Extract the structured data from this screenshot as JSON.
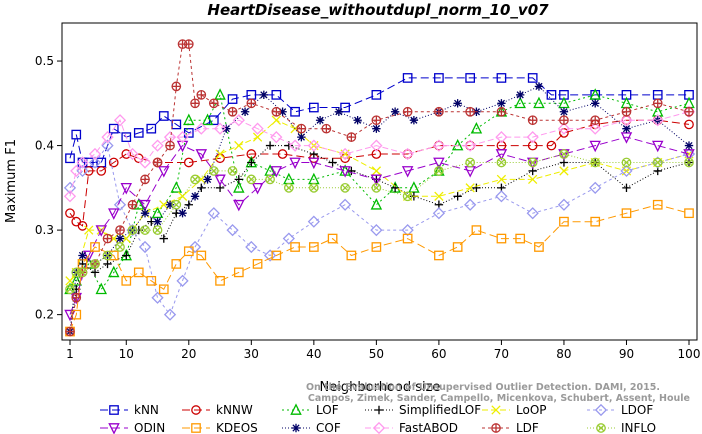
{
  "chart_data": {
    "type": "line",
    "title": "HeartDisease_withoutdupl_norm_10_v07",
    "xlabel": "Neighborhood size",
    "ylabel": "Maximum F1",
    "xlim": [
      1,
      100
    ],
    "ylim": [
      0.17,
      0.545
    ],
    "xticks": [
      1,
      10,
      20,
      30,
      40,
      50,
      60,
      70,
      80,
      90,
      100
    ],
    "yticks": [
      0.2,
      0.3,
      0.4,
      0.5
    ],
    "legend_position": "bottom",
    "credit": "Campos, Zimek, Sander, Campello, Micenkova, Schubert, Assent, Houle\nOn the Evaluation of Unsupervised Outlier Detection. DAMI, 2015.",
    "series": [
      {
        "name": "kNN",
        "color": "#0000cc",
        "marker": "square",
        "dash": "8,4",
        "x": [
          1,
          2,
          3,
          4,
          6,
          8,
          10,
          12,
          14,
          16,
          18,
          20,
          24,
          27,
          30,
          34,
          37,
          40,
          45,
          50,
          55,
          60,
          65,
          70,
          75,
          78,
          80,
          85,
          90,
          95,
          100
        ],
        "y": [
          0.385,
          0.413,
          0.38,
          0.38,
          0.38,
          0.42,
          0.41,
          0.415,
          0.42,
          0.435,
          0.425,
          0.415,
          0.43,
          0.455,
          0.46,
          0.46,
          0.44,
          0.445,
          0.445,
          0.46,
          0.48,
          0.48,
          0.48,
          0.48,
          0.48,
          0.46,
          0.46,
          0.46,
          0.46,
          0.46,
          0.46
        ]
      },
      {
        "name": "kNNW",
        "color": "#cc0000",
        "marker": "circle",
        "dash": "8,4",
        "x": [
          1,
          2,
          3,
          4,
          6,
          8,
          10,
          12,
          15,
          20,
          25,
          30,
          35,
          40,
          45,
          50,
          55,
          60,
          65,
          70,
          75,
          78,
          80,
          85,
          90,
          95,
          100
        ],
        "y": [
          0.32,
          0.31,
          0.305,
          0.37,
          0.37,
          0.38,
          0.39,
          0.385,
          0.38,
          0.38,
          0.385,
          0.39,
          0.39,
          0.385,
          0.385,
          0.39,
          0.39,
          0.4,
          0.4,
          0.4,
          0.4,
          0.4,
          0.415,
          0.425,
          0.43,
          0.43,
          0.425
        ]
      },
      {
        "name": "LOF",
        "color": "#00bb00",
        "marker": "triangle",
        "dash": "2,3",
        "x": [
          1,
          2,
          4,
          6,
          8,
          10,
          12,
          15,
          18,
          20,
          23,
          25,
          28,
          30,
          33,
          36,
          40,
          45,
          50,
          53,
          56,
          60,
          63,
          66,
          70,
          73,
          76,
          80,
          85,
          90,
          95,
          100
        ],
        "y": [
          0.23,
          0.24,
          0.26,
          0.23,
          0.25,
          0.27,
          0.33,
          0.32,
          0.35,
          0.43,
          0.43,
          0.46,
          0.35,
          0.38,
          0.37,
          0.36,
          0.36,
          0.37,
          0.33,
          0.35,
          0.35,
          0.37,
          0.4,
          0.42,
          0.44,
          0.45,
          0.45,
          0.45,
          0.46,
          0.45,
          0.44,
          0.45
        ]
      },
      {
        "name": "SimplifiedLOF",
        "color": "#000000",
        "marker": "plus",
        "dash": "1,2",
        "x": [
          1,
          2,
          3,
          5,
          7,
          10,
          12,
          14,
          16,
          18,
          20,
          22,
          25,
          28,
          30,
          33,
          36,
          40,
          43,
          46,
          50,
          53,
          56,
          60,
          63,
          66,
          70,
          75,
          80,
          85,
          90,
          95,
          100
        ],
        "y": [
          0.18,
          0.23,
          0.26,
          0.25,
          0.26,
          0.27,
          0.3,
          0.31,
          0.29,
          0.32,
          0.33,
          0.35,
          0.35,
          0.36,
          0.38,
          0.4,
          0.4,
          0.39,
          0.38,
          0.37,
          0.36,
          0.35,
          0.34,
          0.33,
          0.34,
          0.35,
          0.35,
          0.37,
          0.38,
          0.38,
          0.35,
          0.37,
          0.38
        ]
      },
      {
        "name": "LoOP",
        "color": "#eeee00",
        "marker": "x",
        "dash": "6,3",
        "x": [
          1,
          2,
          4,
          6,
          8,
          10,
          13,
          16,
          19,
          22,
          25,
          28,
          31,
          34,
          37,
          40,
          45,
          50,
          55,
          60,
          65,
          70,
          75,
          80,
          85,
          90,
          95,
          100
        ],
        "y": [
          0.24,
          0.25,
          0.3,
          0.3,
          0.29,
          0.29,
          0.32,
          0.33,
          0.34,
          0.36,
          0.39,
          0.4,
          0.41,
          0.43,
          0.42,
          0.4,
          0.39,
          0.37,
          0.34,
          0.34,
          0.35,
          0.36,
          0.36,
          0.37,
          0.38,
          0.37,
          0.38,
          0.39
        ]
      },
      {
        "name": "LDOF",
        "color": "#9999ee",
        "marker": "diamond",
        "dash": "3,3",
        "x": [
          1,
          3,
          5,
          7,
          9,
          11,
          13,
          15,
          17,
          19,
          21,
          24,
          27,
          30,
          33,
          36,
          40,
          45,
          50,
          55,
          60,
          65,
          70,
          75,
          80,
          85,
          90,
          95,
          100
        ],
        "y": [
          0.35,
          0.37,
          0.38,
          0.4,
          0.33,
          0.3,
          0.28,
          0.22,
          0.2,
          0.24,
          0.28,
          0.32,
          0.3,
          0.28,
          0.27,
          0.29,
          0.31,
          0.33,
          0.3,
          0.3,
          0.32,
          0.33,
          0.34,
          0.32,
          0.33,
          0.35,
          0.37,
          0.38,
          0.39
        ]
      },
      {
        "name": "ODIN",
        "color": "#9900cc",
        "marker": "triangle-down",
        "dash": "8,4",
        "x": [
          1,
          2,
          4,
          6,
          8,
          10,
          13,
          16,
          19,
          22,
          25,
          28,
          31,
          34,
          37,
          40,
          45,
          50,
          55,
          60,
          65,
          70,
          75,
          80,
          85,
          90,
          95,
          100
        ],
        "y": [
          0.2,
          0.22,
          0.27,
          0.3,
          0.32,
          0.35,
          0.33,
          0.37,
          0.4,
          0.39,
          0.36,
          0.33,
          0.35,
          0.37,
          0.38,
          0.38,
          0.37,
          0.36,
          0.37,
          0.38,
          0.37,
          0.39,
          0.38,
          0.39,
          0.4,
          0.41,
          0.4,
          0.39
        ]
      },
      {
        "name": "KDEOS",
        "color": "#ff9900",
        "marker": "square",
        "dash": "8,4",
        "x": [
          1,
          2,
          3,
          5,
          8,
          10,
          12,
          14,
          16,
          18,
          20,
          22,
          25,
          28,
          31,
          34,
          37,
          40,
          43,
          46,
          50,
          55,
          60,
          63,
          66,
          70,
          73,
          76,
          80,
          85,
          90,
          95,
          100
        ],
        "y": [
          0.18,
          0.2,
          0.26,
          0.28,
          0.27,
          0.24,
          0.25,
          0.24,
          0.23,
          0.26,
          0.275,
          0.27,
          0.24,
          0.25,
          0.26,
          0.27,
          0.28,
          0.28,
          0.29,
          0.27,
          0.28,
          0.29,
          0.27,
          0.28,
          0.3,
          0.29,
          0.29,
          0.28,
          0.31,
          0.31,
          0.32,
          0.33,
          0.32
        ]
      },
      {
        "name": "COF",
        "color": "#000066",
        "marker": "asterisk",
        "dash": "1,2",
        "x": [
          1,
          2,
          3,
          5,
          7,
          9,
          11,
          13,
          15,
          17,
          19,
          21,
          23,
          26,
          29,
          32,
          35,
          38,
          41,
          44,
          47,
          50,
          53,
          56,
          60,
          63,
          66,
          70,
          73,
          76,
          80,
          85,
          90,
          95,
          100
        ],
        "y": [
          0.18,
          0.25,
          0.27,
          0.26,
          0.27,
          0.29,
          0.3,
          0.32,
          0.31,
          0.33,
          0.32,
          0.34,
          0.36,
          0.42,
          0.44,
          0.46,
          0.44,
          0.41,
          0.43,
          0.44,
          0.43,
          0.42,
          0.44,
          0.43,
          0.44,
          0.45,
          0.44,
          0.45,
          0.46,
          0.47,
          0.44,
          0.45,
          0.42,
          0.43,
          0.4
        ]
      },
      {
        "name": "FastABOD",
        "color": "#ff99ee",
        "marker": "diamond",
        "dash": "6,3",
        "x": [
          1,
          2,
          3,
          5,
          7,
          9,
          11,
          13,
          15,
          17,
          19,
          22,
          25,
          28,
          31,
          34,
          37,
          40,
          45,
          50,
          55,
          60,
          65,
          70,
          75,
          80,
          85,
          90,
          95,
          100
        ],
        "y": [
          0.34,
          0.37,
          0.38,
          0.39,
          0.41,
          0.43,
          0.39,
          0.38,
          0.4,
          0.41,
          0.41,
          0.42,
          0.42,
          0.43,
          0.42,
          0.41,
          0.4,
          0.4,
          0.39,
          0.4,
          0.39,
          0.4,
          0.4,
          0.41,
          0.41,
          0.42,
          0.42,
          0.43,
          0.43,
          0.44
        ]
      },
      {
        "name": "LDF",
        "color": "#bb3333",
        "marker": "circle-plus",
        "dash": "3,3",
        "x": [
          1,
          2,
          3,
          5,
          7,
          9,
          11,
          13,
          15,
          17,
          18,
          19,
          20,
          21,
          22,
          24,
          27,
          30,
          34,
          38,
          42,
          46,
          50,
          55,
          60,
          65,
          70,
          75,
          80,
          85,
          90,
          95,
          100
        ],
        "y": [
          0.18,
          0.22,
          0.25,
          0.26,
          0.29,
          0.3,
          0.33,
          0.36,
          0.38,
          0.4,
          0.47,
          0.52,
          0.52,
          0.45,
          0.46,
          0.45,
          0.44,
          0.45,
          0.44,
          0.42,
          0.42,
          0.41,
          0.43,
          0.44,
          0.44,
          0.44,
          0.44,
          0.43,
          0.43,
          0.43,
          0.44,
          0.45,
          0.44
        ]
      },
      {
        "name": "INFLO",
        "color": "#99cc33",
        "marker": "circle-x",
        "dash": "1,2",
        "x": [
          1,
          2,
          3,
          5,
          7,
          9,
          11,
          13,
          15,
          18,
          21,
          24,
          27,
          30,
          33,
          36,
          40,
          45,
          50,
          55,
          60,
          65,
          70,
          75,
          80,
          85,
          90,
          95,
          100
        ],
        "y": [
          0.23,
          0.25,
          0.25,
          0.26,
          0.27,
          0.28,
          0.3,
          0.3,
          0.3,
          0.33,
          0.36,
          0.37,
          0.37,
          0.36,
          0.36,
          0.35,
          0.35,
          0.35,
          0.35,
          0.34,
          0.37,
          0.38,
          0.38,
          0.38,
          0.39,
          0.38,
          0.38,
          0.38,
          0.38
        ]
      }
    ]
  }
}
